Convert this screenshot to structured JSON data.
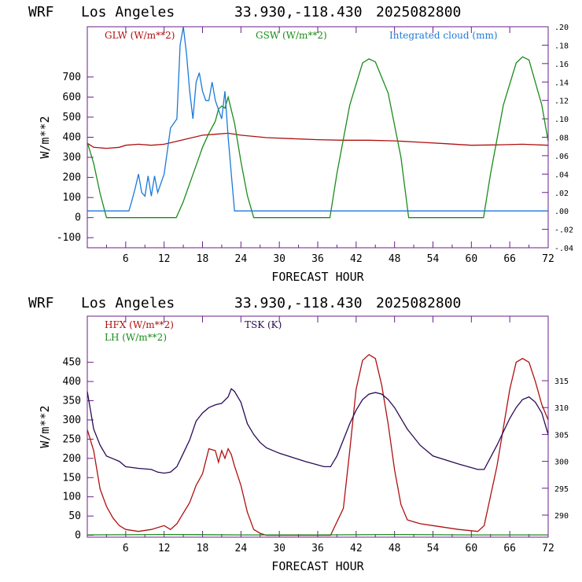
{
  "header": {
    "left": "WRF",
    "city": "Los Angeles",
    "coords": "33.930,-118.430",
    "datetime": "2025082800"
  },
  "colors": {
    "red": "#b01010",
    "green": "#1a8c1a",
    "blue": "#1a7ad8",
    "purple": "#2a0a55",
    "axis": "#6a1f8a"
  },
  "chart_data": [
    {
      "type": "line",
      "xlabel": "FORECAST HOUR",
      "ylabel": "W/m**2",
      "x_ticks": [
        "6",
        "12",
        "18",
        "24",
        "30",
        "36",
        "42",
        "48",
        "54",
        "60",
        "66",
        "72"
      ],
      "xlim": [
        0,
        72
      ],
      "ylim": [
        -150,
        950
      ],
      "y_ticks": [
        "-100",
        "0",
        "100",
        "200",
        "300",
        "400",
        "500",
        "600",
        "700"
      ],
      "right_axis": {
        "ylim": [
          -0.04,
          0.2
        ],
        "ticks": [
          "-.04",
          "-.02",
          ".00",
          ".02",
          ".04",
          ".06",
          ".08",
          ".10",
          ".12",
          ".14",
          ".16",
          ".18",
          ".20"
        ]
      },
      "series": [
        {
          "name": "GLW (W/m**2)",
          "color": "red",
          "axis": "left",
          "x": [
            0,
            1,
            3,
            5,
            6,
            8,
            10,
            12,
            14,
            16,
            18,
            20,
            22,
            24,
            28,
            32,
            36,
            40,
            44,
            48,
            52,
            56,
            60,
            64,
            68,
            72
          ],
          "y": [
            370,
            350,
            345,
            350,
            360,
            365,
            360,
            365,
            380,
            395,
            410,
            415,
            420,
            410,
            398,
            393,
            388,
            385,
            385,
            382,
            375,
            368,
            360,
            362,
            365,
            360
          ]
        },
        {
          "name": "GSW (W/m**2)",
          "color": "green",
          "axis": "left",
          "x": [
            0,
            1,
            2,
            3,
            12,
            13.9,
            15,
            16,
            17,
            18,
            19,
            20,
            20.5,
            21,
            21.5,
            22,
            23,
            24,
            25,
            26,
            37.9,
            39,
            41,
            43,
            44,
            45,
            47,
            49,
            50.2,
            61.9,
            63,
            65,
            67,
            68,
            69,
            71,
            72
          ],
          "y": [
            375,
            270,
            120,
            0,
            0,
            0,
            80,
            170,
            260,
            350,
            420,
            480,
            540,
            555,
            545,
            600,
            470,
            280,
            110,
            0,
            0,
            220,
            560,
            770,
            790,
            775,
            620,
            300,
            0,
            0,
            220,
            560,
            770,
            800,
            785,
            560,
            380
          ]
        },
        {
          "name": "Integrated cloud (mm)",
          "color": "blue",
          "axis": "right",
          "x": [
            0,
            6.5,
            7,
            7.5,
            8,
            8.5,
            9,
            9.5,
            10,
            10.5,
            11,
            12,
            13,
            14,
            14.5,
            15,
            15.5,
            16,
            16.5,
            17,
            17.5,
            18,
            18.5,
            19,
            19.5,
            20,
            20.5,
            21,
            21.5,
            22,
            22.5,
            23,
            72
          ],
          "y": [
            0,
            0,
            0.012,
            0.025,
            0.04,
            0.02,
            0.016,
            0.038,
            0.016,
            0.038,
            0.02,
            0.04,
            0.09,
            0.1,
            0.18,
            0.2,
            0.17,
            0.13,
            0.1,
            0.14,
            0.15,
            0.13,
            0.12,
            0.12,
            0.14,
            0.12,
            0.11,
            0.1,
            0.13,
            0.08,
            0.04,
            0,
            0
          ]
        }
      ]
    },
    {
      "type": "line",
      "xlabel": "FORECAST HOUR",
      "ylabel": "W/m**2",
      "x_ticks": [
        "6",
        "12",
        "18",
        "24",
        "30",
        "36",
        "42",
        "48",
        "54",
        "60",
        "66",
        "72"
      ],
      "xlim": [
        0,
        72
      ],
      "ylim": [
        -5,
        570
      ],
      "y_ticks": [
        "0",
        "50",
        "100",
        "150",
        "200",
        "250",
        "300",
        "350",
        "400",
        "450"
      ],
      "right_axis": {
        "ylim": [
          285.9,
          327
        ],
        "ticks": [
          "290",
          "295",
          "300",
          "305",
          "310",
          "315"
        ]
      },
      "series": [
        {
          "name": "HFX (W/m**2)",
          "color": "red",
          "axis": "left",
          "x": [
            0,
            1,
            2,
            3,
            4,
            5,
            6,
            8,
            10,
            12,
            13,
            14,
            16,
            17,
            18,
            19,
            20,
            20.5,
            21,
            21.5,
            22,
            22.5,
            23,
            24,
            25,
            26,
            27,
            28,
            36,
            38,
            40,
            41,
            42,
            43,
            44,
            45,
            46,
            47,
            48,
            49,
            50,
            51,
            52,
            54,
            58,
            61,
            62,
            64,
            66,
            67,
            68,
            69,
            70,
            71,
            72
          ],
          "y": [
            275,
            220,
            120,
            75,
            45,
            25,
            15,
            10,
            15,
            25,
            15,
            30,
            85,
            130,
            160,
            225,
            220,
            190,
            220,
            200,
            225,
            210,
            180,
            130,
            60,
            15,
            5,
            0,
            0,
            0,
            70,
            220,
            380,
            455,
            470,
            460,
            390,
            290,
            170,
            80,
            40,
            35,
            30,
            25,
            15,
            10,
            25,
            180,
            380,
            450,
            460,
            450,
            400,
            340,
            300
          ]
        },
        {
          "name": "LH (W/m**2)",
          "color": "green",
          "axis": "left",
          "x": [
            0,
            12,
            24,
            36,
            48,
            60,
            72
          ],
          "y": [
            1,
            2,
            1,
            1,
            2,
            1,
            1
          ]
        },
        {
          "name": "TSK (K)",
          "color": "purple",
          "axis": "right",
          "x": [
            0,
            1,
            2,
            3,
            4,
            5,
            6,
            8,
            10,
            11,
            12,
            13,
            14,
            15,
            16,
            17,
            18,
            19,
            20,
            21,
            22,
            22.5,
            23,
            24,
            25,
            26,
            27,
            28,
            30,
            34,
            37,
            38,
            39,
            40,
            41,
            42,
            43,
            44,
            45,
            46,
            47,
            48,
            50,
            52,
            54,
            58,
            61,
            62,
            64,
            66,
            67,
            68,
            69,
            70,
            71,
            72
          ],
          "y": [
            313,
            306,
            303,
            301,
            300.5,
            300,
            299,
            298.7,
            298.5,
            298,
            297.8,
            298,
            299,
            301.5,
            304,
            307.5,
            309,
            310,
            310.5,
            310.8,
            312,
            313.5,
            313,
            311,
            307,
            305,
            303.5,
            302.5,
            301.5,
            300,
            299,
            299,
            301,
            304,
            307,
            309.5,
            311.5,
            312.5,
            312.8,
            312.5,
            311.5,
            310,
            306,
            303,
            301,
            299.5,
            298.5,
            298.5,
            303,
            308,
            310,
            311.5,
            312,
            311,
            309,
            305
          ]
        }
      ]
    }
  ]
}
